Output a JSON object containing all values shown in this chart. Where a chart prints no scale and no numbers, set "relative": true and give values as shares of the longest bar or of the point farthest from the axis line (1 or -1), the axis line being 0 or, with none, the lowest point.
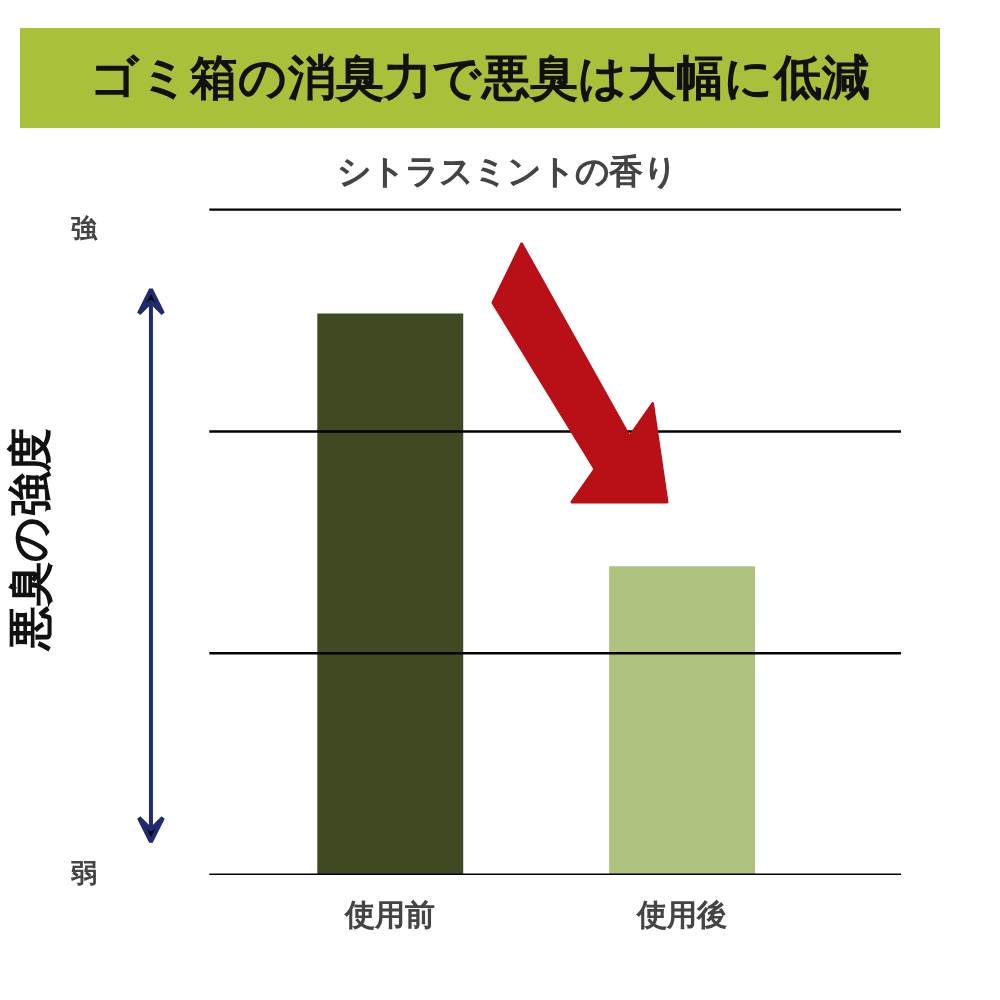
{
  "chart_data": {
    "type": "bar",
    "title": "ゴミ箱の消臭力で悪臭は大幅に低減",
    "subtitle": "シトラスミントの香り",
    "ylabel": "悪臭の強度",
    "categories": [
      "使用前",
      "使用後"
    ],
    "values": [
      1,
      0.55
    ],
    "colors": [
      "#3f4a22",
      "#afc17f"
    ],
    "relative": true,
    "ref_lines": [
      {
        "axis": "y",
        "value": 0.395,
        "color": "#000000"
      },
      {
        "axis": "y",
        "value": 0.79,
        "color": "#000000"
      },
      {
        "axis": "y",
        "value": 1.185,
        "color": "#000000"
      }
    ],
    "annotations": [
      "強",
      "弱"
    ]
  }
}
